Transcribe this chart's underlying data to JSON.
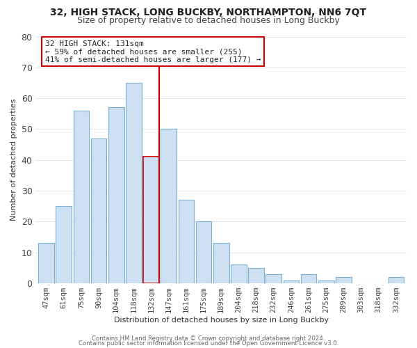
{
  "title": "32, HIGH STACK, LONG BUCKBY, NORTHAMPTON, NN6 7QT",
  "subtitle": "Size of property relative to detached houses in Long Buckby",
  "xlabel": "Distribution of detached houses by size in Long Buckby",
  "ylabel": "Number of detached properties",
  "bar_labels": [
    "47sqm",
    "61sqm",
    "75sqm",
    "90sqm",
    "104sqm",
    "118sqm",
    "132sqm",
    "147sqm",
    "161sqm",
    "175sqm",
    "189sqm",
    "204sqm",
    "218sqm",
    "232sqm",
    "246sqm",
    "261sqm",
    "275sqm",
    "289sqm",
    "303sqm",
    "318sqm",
    "332sqm"
  ],
  "bar_values": [
    13,
    25,
    56,
    47,
    57,
    65,
    41,
    50,
    27,
    20,
    13,
    6,
    5,
    3,
    1,
    3,
    1,
    2,
    0,
    0,
    2
  ],
  "bar_color": "#cde0f2",
  "bar_edge_color": "#7bafd4",
  "highlight_index": 6,
  "highlight_line_color": "#cc0000",
  "annotation_line1": "32 HIGH STACK: 131sqm",
  "annotation_line2": "← 59% of detached houses are smaller (255)",
  "annotation_line3": "41% of semi-detached houses are larger (177) →",
  "annotation_box_edge": "#cc0000",
  "ylim": [
    0,
    80
  ],
  "yticks": [
    0,
    10,
    20,
    30,
    40,
    50,
    60,
    70,
    80
  ],
  "footer1": "Contains HM Land Registry data © Crown copyright and database right 2024.",
  "footer2": "Contains public sector information licensed under the Open Government Licence v3.0.",
  "background_color": "#ffffff",
  "grid_color": "#dce8f0",
  "title_fontsize": 10,
  "subtitle_fontsize": 9,
  "annotation_fontsize": 8,
  "axis_label_fontsize": 8,
  "tick_fontsize": 7.5
}
